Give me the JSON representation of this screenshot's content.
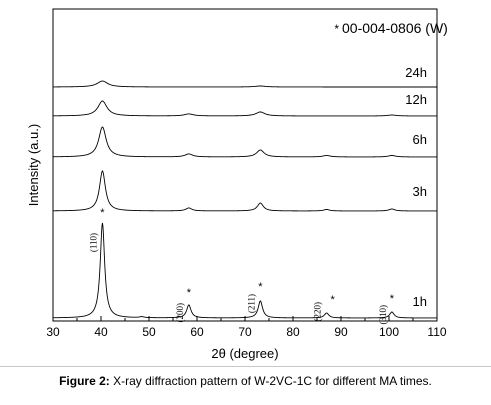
{
  "chart_data": {
    "type": "line",
    "title": "",
    "xlabel": "2θ (degree)",
    "ylabel": "Intensity (a.u.)",
    "xlim": [
      30,
      110
    ],
    "x_ticks": [
      "30",
      "40",
      "50",
      "60",
      "70",
      "80",
      "90",
      "100",
      "110"
    ],
    "grid": false,
    "legend": {
      "position": "top-right",
      "symbol": "*",
      "text": "00-004-0806 (W)"
    },
    "series": [
      {
        "name": "1h",
        "peaks": [
          {
            "x": 40.3,
            "height": 95
          },
          {
            "x": 58.3,
            "height": 13
          },
          {
            "x": 73.2,
            "height": 17
          },
          {
            "x": 87.0,
            "height": 5
          },
          {
            "x": 100.6,
            "height": 6
          },
          {
            "x": 48.5,
            "height": 1
          }
        ]
      },
      {
        "name": "3h",
        "peaks": [
          {
            "x": 40.3,
            "height": 40
          },
          {
            "x": 58.3,
            "height": 3
          },
          {
            "x": 73.2,
            "height": 8
          },
          {
            "x": 87.0,
            "height": 1.5
          },
          {
            "x": 100.6,
            "height": 2
          }
        ]
      },
      {
        "name": "6h",
        "peaks": [
          {
            "x": 40.3,
            "height": 30
          },
          {
            "x": 58.3,
            "height": 3
          },
          {
            "x": 73.2,
            "height": 7
          },
          {
            "x": 87.0,
            "height": 1.5
          },
          {
            "x": 100.6,
            "height": 1.5
          }
        ]
      },
      {
        "name": "12h",
        "peaks": [
          {
            "x": 40.3,
            "height": 15
          },
          {
            "x": 58.3,
            "height": 2
          },
          {
            "x": 73.2,
            "height": 4
          },
          {
            "x": 100.6,
            "height": 1
          }
        ]
      },
      {
        "name": "24h",
        "peaks": [
          {
            "x": 40.3,
            "height": 6
          },
          {
            "x": 73.2,
            "height": 1
          }
        ]
      }
    ],
    "annotations": [
      {
        "text": "(110)",
        "x": 40.3
      },
      {
        "text": "(200)",
        "x": 58.3
      },
      {
        "text": "(211)",
        "x": 73.2
      },
      {
        "text": "(220)",
        "x": 87.0
      },
      {
        "text": "(310)",
        "x": 100.6
      }
    ],
    "peak_marker": "*"
  },
  "caption": {
    "label": "Figure 2:",
    "text": " X-ray diffraction pattern of W-2VC-1C for different MA times."
  }
}
